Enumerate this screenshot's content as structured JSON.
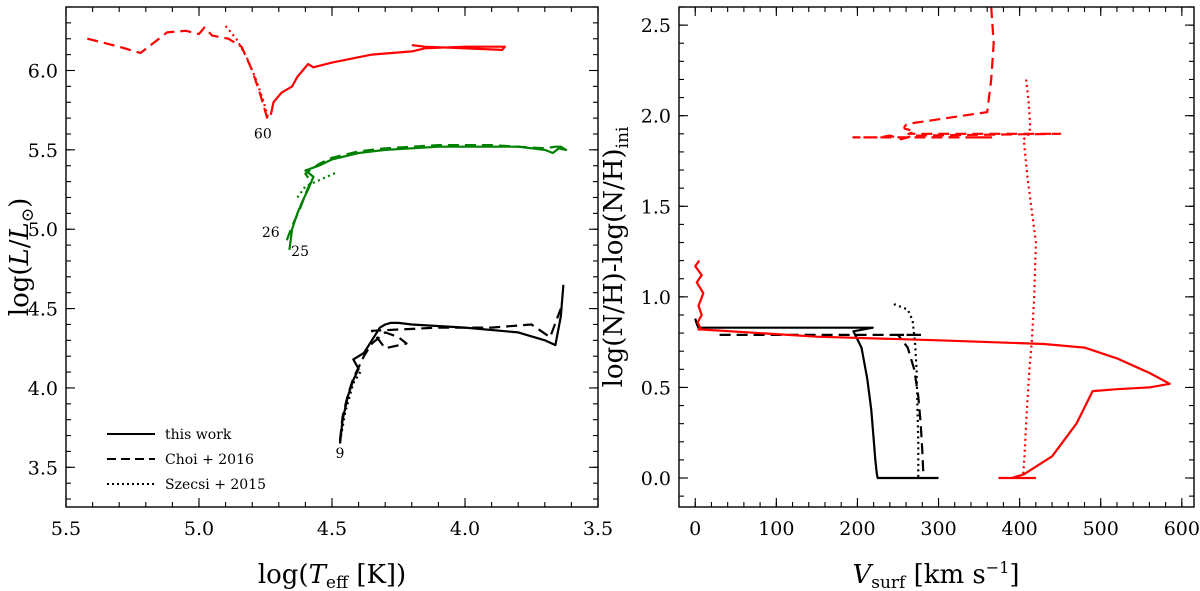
{
  "chart_data": [
    {
      "type": "line",
      "panel": "left",
      "title": "",
      "xlabel": "log(T_eff [K])",
      "ylabel": "log(L/L⊙)",
      "xlim": [
        5.5,
        3.5
      ],
      "ylim": [
        3.25,
        6.4
      ],
      "xticks": [
        "5.5",
        "5.0",
        "4.5",
        "4.0",
        "3.5"
      ],
      "yticks": [
        "3.5",
        "4.0",
        "4.5",
        "5.0",
        "5.5",
        "6.0"
      ],
      "legend": {
        "placement": "lower-left",
        "entries": [
          {
            "label": "this work",
            "style": "solid"
          },
          {
            "label": "Choi + 2016",
            "style": "dashed"
          },
          {
            "label": "Szecsi + 2015",
            "style": "dotted"
          }
        ]
      },
      "mass_labels": [
        {
          "text": "60",
          "x": 4.76,
          "y": 5.57
        },
        {
          "text": "26",
          "x": 4.73,
          "y": 4.95
        },
        {
          "text": "25",
          "x": 4.62,
          "y": 4.83
        },
        {
          "text": "9",
          "x": 4.47,
          "y": 3.56
        }
      ],
      "series": [
        {
          "name": "60 this work",
          "color": "#ff0000",
          "style": "solid",
          "x": [
            4.73,
            4.72,
            4.69,
            4.65,
            4.63,
            4.61,
            4.59,
            4.57,
            4.5,
            4.35,
            4.2,
            4.15,
            4.0,
            3.85,
            3.86,
            4.15,
            4.2
          ],
          "y": [
            5.72,
            5.8,
            5.86,
            5.9,
            5.96,
            6.0,
            6.04,
            6.02,
            6.05,
            6.1,
            6.12,
            6.14,
            6.15,
            6.15,
            6.13,
            6.15,
            6.16
          ]
        },
        {
          "name": "60 Choi",
          "color": "#ff0000",
          "style": "dashed",
          "x": [
            5.42,
            5.3,
            5.22,
            5.12,
            5.05,
            5.0,
            4.98,
            4.95,
            4.89,
            4.84,
            4.8,
            4.77,
            4.74
          ],
          "y": [
            6.2,
            6.15,
            6.11,
            6.24,
            6.25,
            6.23,
            6.27,
            6.22,
            6.2,
            6.15,
            6.0,
            5.85,
            5.68
          ]
        },
        {
          "name": "60 Szecsi",
          "color": "#ff0000",
          "style": "dotted",
          "x": [
            4.9,
            4.86,
            4.82,
            4.79,
            4.76,
            4.74
          ],
          "y": [
            6.28,
            6.2,
            6.08,
            5.96,
            5.82,
            5.7
          ]
        },
        {
          "name": "26 this work",
          "color": "#008000",
          "style": "solid",
          "x": [
            4.66,
            4.65,
            4.63,
            4.61,
            4.59,
            4.57,
            4.6,
            4.55,
            4.5,
            4.4,
            4.3,
            4.2,
            4.1,
            4.0,
            3.9,
            3.8,
            3.7,
            3.67,
            3.64,
            3.62,
            3.65
          ],
          "y": [
            4.87,
            5.0,
            5.1,
            5.18,
            5.25,
            5.33,
            5.37,
            5.4,
            5.44,
            5.48,
            5.5,
            5.51,
            5.52,
            5.52,
            5.52,
            5.52,
            5.5,
            5.48,
            5.52,
            5.5,
            5.51
          ]
        },
        {
          "name": "26 Choi",
          "color": "#008000",
          "style": "dashed",
          "x": [
            4.67,
            4.65,
            4.62,
            4.6,
            4.58,
            4.6,
            4.55,
            4.5,
            4.4,
            4.3,
            4.2,
            4.1,
            4.0,
            3.9,
            3.8,
            3.7,
            3.66,
            3.62
          ],
          "y": [
            4.93,
            5.02,
            5.13,
            5.22,
            5.3,
            5.35,
            5.41,
            5.45,
            5.49,
            5.51,
            5.52,
            5.53,
            5.53,
            5.53,
            5.52,
            5.51,
            5.52,
            5.52
          ]
        },
        {
          "name": "26 Szecsi",
          "color": "#008000",
          "style": "dotted",
          "x": [
            4.63,
            4.6,
            4.56,
            4.52,
            4.48
          ],
          "y": [
            5.2,
            5.27,
            5.3,
            5.33,
            5.36
          ]
        },
        {
          "name": "9 this work",
          "color": "#000000",
          "style": "solid",
          "x": [
            4.47,
            4.46,
            4.44,
            4.42,
            4.4,
            4.42,
            4.38,
            4.35,
            4.32,
            4.3,
            4.28,
            4.25,
            4.2,
            4.0,
            3.8,
            3.7,
            3.66,
            3.64,
            3.63
          ],
          "y": [
            3.65,
            3.8,
            3.95,
            4.05,
            4.12,
            4.18,
            4.22,
            4.3,
            4.38,
            4.4,
            4.41,
            4.41,
            4.4,
            4.38,
            4.35,
            4.3,
            4.27,
            4.45,
            4.65
          ]
        },
        {
          "name": "9 Choi",
          "color": "#000000",
          "style": "dashed",
          "x": [
            4.47,
            4.46,
            4.44,
            4.42,
            4.4,
            4.38,
            4.35,
            4.3,
            4.25,
            4.22,
            4.3,
            4.35,
            4.1,
            3.9,
            3.75,
            3.68,
            3.64
          ],
          "y": [
            3.67,
            3.82,
            3.96,
            4.06,
            4.13,
            4.2,
            4.28,
            4.35,
            4.32,
            4.28,
            4.25,
            4.36,
            4.38,
            4.38,
            4.4,
            4.32,
            4.5
          ]
        },
        {
          "name": "9 Szecsi",
          "color": "#000000",
          "style": "dotted",
          "x": [
            4.47,
            4.45,
            4.42,
            4.39
          ],
          "y": [
            3.66,
            3.85,
            4.03,
            4.11
          ]
        }
      ]
    },
    {
      "type": "line",
      "panel": "right",
      "title": "",
      "xlabel": "V_surf [km s^-1]",
      "ylabel": "log(N/H)-log(N/H)_ini",
      "xlim": [
        -20,
        615
      ],
      "ylim": [
        -0.16,
        2.6
      ],
      "xticks": [
        "0",
        "100",
        "200",
        "300",
        "400",
        "500",
        "600"
      ],
      "yticks": [
        "0.0",
        "0.5",
        "1.0",
        "1.5",
        "2.0",
        "2.5"
      ],
      "series": [
        {
          "name": "9 this work",
          "color": "#000000",
          "style": "solid",
          "x": [
            0,
            2,
            4,
            20,
            150,
            219,
            195,
            205,
            212,
            217,
            220,
            222,
            224,
            225,
            300
          ],
          "y": [
            0.88,
            0.85,
            0.83,
            0.83,
            0.83,
            0.83,
            0.81,
            0.72,
            0.55,
            0.38,
            0.22,
            0.1,
            0.02,
            0.0,
            0.0
          ]
        },
        {
          "name": "9 Choi",
          "color": "#000000",
          "style": "dashed",
          "x": [
            30,
            150,
            230,
            280,
            250,
            262,
            270,
            275,
            278,
            280,
            281,
            282
          ],
          "y": [
            0.79,
            0.79,
            0.79,
            0.79,
            0.79,
            0.72,
            0.6,
            0.45,
            0.3,
            0.15,
            0.05,
            0.0
          ]
        },
        {
          "name": "9 Szecsi",
          "color": "#000000",
          "style": "dotted",
          "x": [
            245,
            262,
            268,
            271,
            273,
            274,
            275,
            275
          ],
          "y": [
            0.96,
            0.93,
            0.87,
            0.75,
            0.6,
            0.4,
            0.2,
            0.0
          ]
        },
        {
          "name": "60 this work",
          "color": "#ff0000",
          "style": "solid",
          "x": [
            5,
            0,
            8,
            2,
            10,
            4,
            8,
            3,
            6,
            4,
            8,
            150,
            300,
            430,
            480,
            520,
            560,
            585,
            560,
            520,
            490,
            470,
            440,
            405,
            390,
            375,
            420
          ],
          "y": [
            1.2,
            1.17,
            1.12,
            1.08,
            1.02,
            0.95,
            0.9,
            0.86,
            0.83,
            0.82,
            0.82,
            0.78,
            0.76,
            0.74,
            0.72,
            0.66,
            0.58,
            0.52,
            0.5,
            0.49,
            0.48,
            0.3,
            0.12,
            0.02,
            0.0,
            0.0,
            0.0
          ]
        },
        {
          "name": "60 Choi",
          "color": "#ff0000",
          "style": "dashed",
          "x": [
            365,
            368,
            365,
            360,
            270,
            260,
            258,
            258,
            265,
            270,
            263,
            450,
            268,
            262,
            254,
            240,
            227,
            217,
            205,
            195,
            200,
            340,
            355,
            360,
            362,
            363,
            364,
            365,
            362,
            358,
            354,
            350,
            347,
            345,
            343
          ],
          "y": [
            2.6,
            2.4,
            2.2,
            2.02,
            1.96,
            1.95,
            1.94,
            1.93,
            1.92,
            1.91,
            1.9,
            1.9,
            1.89,
            1.88,
            1.87,
            1.89,
            1.88,
            1.88,
            1.88,
            1.88,
            1.88,
            1.88,
            1.88,
            1.88,
            1.88,
            1.88,
            1.88,
            1.88,
            1.88,
            1.88,
            1.88,
            1.88,
            1.88,
            1.88,
            1.88
          ]
        },
        {
          "name": "60 Szecsi",
          "color": "#ff0000",
          "style": "dotted",
          "x": [
            408,
            411,
            413,
            412,
            405,
            410,
            420,
            418,
            415,
            412,
            410,
            408,
            406,
            404
          ],
          "y": [
            2.2,
            2.08,
            1.94,
            1.9,
            1.87,
            1.65,
            1.3,
            1.0,
            0.75,
            0.6,
            0.45,
            0.3,
            0.12,
            0.0
          ]
        }
      ]
    }
  ]
}
